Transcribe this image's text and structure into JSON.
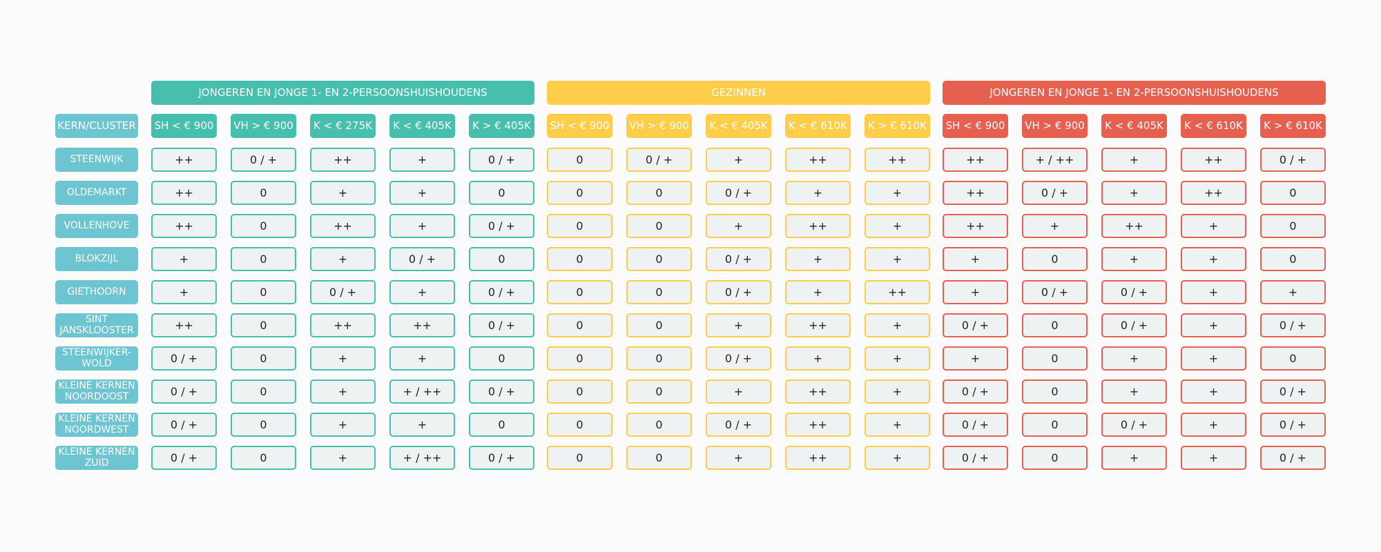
{
  "corner_label": "KERN/CLUSTER",
  "label_color": "#6cc5d1",
  "groups": [
    {
      "title": "JONGEREN EN JONGE 1- EN 2-PERSOONSHUISHOUDENS",
      "color": "#46bfae",
      "header_text_color": "#ffffff",
      "columns": [
        "SH < € 900",
        "VH > € 900",
        "K < € 275K",
        "K < € 405K",
        "K > € 405K"
      ]
    },
    {
      "title": "GEZINNEN",
      "color": "#fecd4a",
      "header_text_color": "#ffffff",
      "columns": [
        "SH < € 900",
        "VH > € 900",
        "K < € 405K",
        "K < € 610K",
        "K > € 610K"
      ]
    },
    {
      "title": "JONGEREN EN JONGE 1- EN 2-PERSOONSHUISHOUDENS",
      "color": "#e5604e",
      "header_text_color": "#ffffff",
      "columns": [
        "SH < € 900",
        "VH > € 900",
        "K < € 405K",
        "K < € 610K",
        "K > € 610K"
      ]
    }
  ],
  "rows": [
    {
      "label": "STEENWIJK",
      "values": [
        "++",
        "0 / +",
        "++",
        "+",
        "0 / +",
        "0",
        "0 / +",
        "+",
        "++",
        "++",
        "++",
        "+ / ++",
        "+",
        "++",
        "0 / +"
      ]
    },
    {
      "label": "OLDEMARKT",
      "values": [
        "++",
        "0",
        "+",
        "+",
        "0",
        "0",
        "0",
        "0 / +",
        "+",
        "+",
        "++",
        "0 / +",
        "+",
        "++",
        "0"
      ]
    },
    {
      "label": "VOLLENHOVE",
      "values": [
        "++",
        "0",
        "++",
        "+",
        "0 / +",
        "0",
        "0",
        "+",
        "++",
        "+",
        "++",
        "+",
        "++",
        "+",
        "0"
      ]
    },
    {
      "label": "BLOKZIJL",
      "values": [
        "+",
        "0",
        "+",
        "0 / +",
        "0",
        "0",
        "0",
        "0 / +",
        "+",
        "+",
        "+",
        "0",
        "+",
        "+",
        "0"
      ]
    },
    {
      "label": "GIETHOORN",
      "values": [
        "+",
        "0",
        "0 / +",
        "+",
        "0 / +",
        "0",
        "0",
        "0 / +",
        "+",
        "++",
        "+",
        "0 / +",
        "0 / +",
        "+",
        "+"
      ]
    },
    {
      "label": "SINT JANSKLOOSTER",
      "values": [
        "++",
        "0",
        "++",
        "++",
        "0 / +",
        "0",
        "0",
        "+",
        "++",
        "+",
        "0 / +",
        "0",
        "0 / +",
        "+",
        "0 / +"
      ]
    },
    {
      "label": "STEENWIJKER-WOLD",
      "values": [
        "0 / +",
        "0",
        "+",
        "+",
        "0",
        "0",
        "0",
        "0 / +",
        "+",
        "+",
        "+",
        "0",
        "+",
        "+",
        "0"
      ]
    },
    {
      "label": "KLEINE KERNEN NOORDOOST",
      "values": [
        "0 / +",
        "0",
        "+",
        "+ / ++",
        "0 / +",
        "0",
        "0",
        "+",
        "++",
        "+",
        "0 / +",
        "0",
        "+",
        "+",
        "0 / +"
      ]
    },
    {
      "label": "KLEINE KERNEN NOORDWEST",
      "values": [
        "0 / +",
        "0",
        "+",
        "+",
        "0",
        "0",
        "0",
        "0 / +",
        "++",
        "+",
        "0 / +",
        "0",
        "0 / +",
        "+",
        "0 / +"
      ]
    },
    {
      "label": "KLEINE KERNEN ZUID",
      "values": [
        "0 / +",
        "0",
        "+",
        "+ / ++",
        "0 / +",
        "0",
        "0",
        "+",
        "++",
        "+",
        "0 / +",
        "0",
        "+",
        "+",
        "0 / +"
      ]
    }
  ]
}
